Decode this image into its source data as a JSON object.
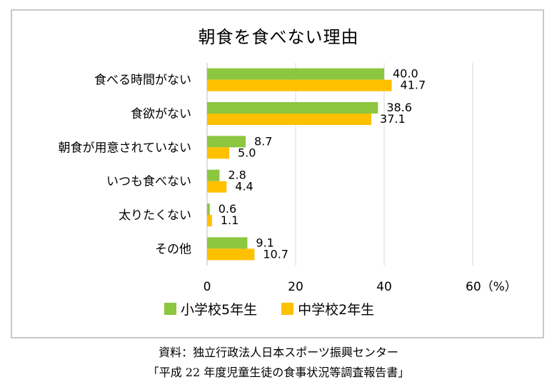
{
  "chart_data": {
    "type": "bar",
    "orientation": "horizontal",
    "title": "朝食を食べない理由",
    "categories": [
      "食べる時間がない",
      "食欲がない",
      "朝食が用意されていない",
      "いつも食べない",
      "太りたくない",
      "その他"
    ],
    "series": [
      {
        "name": "小学校5年生",
        "values": [
          40.0,
          38.6,
          8.7,
          2.8,
          0.6,
          9.1
        ],
        "color": "#8dc63f"
      },
      {
        "name": "中学校2年生",
        "values": [
          41.7,
          37.1,
          5.0,
          4.4,
          1.1,
          10.7
        ],
        "color": "#ffc000"
      }
    ],
    "value_labels": [
      [
        "40.0",
        "38.6",
        "8.7",
        "2.8",
        "0.6",
        "9.1"
      ],
      [
        "41.7",
        "37.1",
        "5.0",
        "4.4",
        "1.1",
        "10.7"
      ]
    ],
    "x_ticks": [
      "0",
      "20",
      "40",
      "60（%）"
    ],
    "xlim": [
      0,
      60
    ],
    "grid": "vertical",
    "legend_position": "bottom"
  },
  "source": {
    "line1": "資料：独立行政法人日本スポーツ振興センター",
    "line2": "「平成 22 年度児童生徒の食事状況等調査報告書」"
  }
}
